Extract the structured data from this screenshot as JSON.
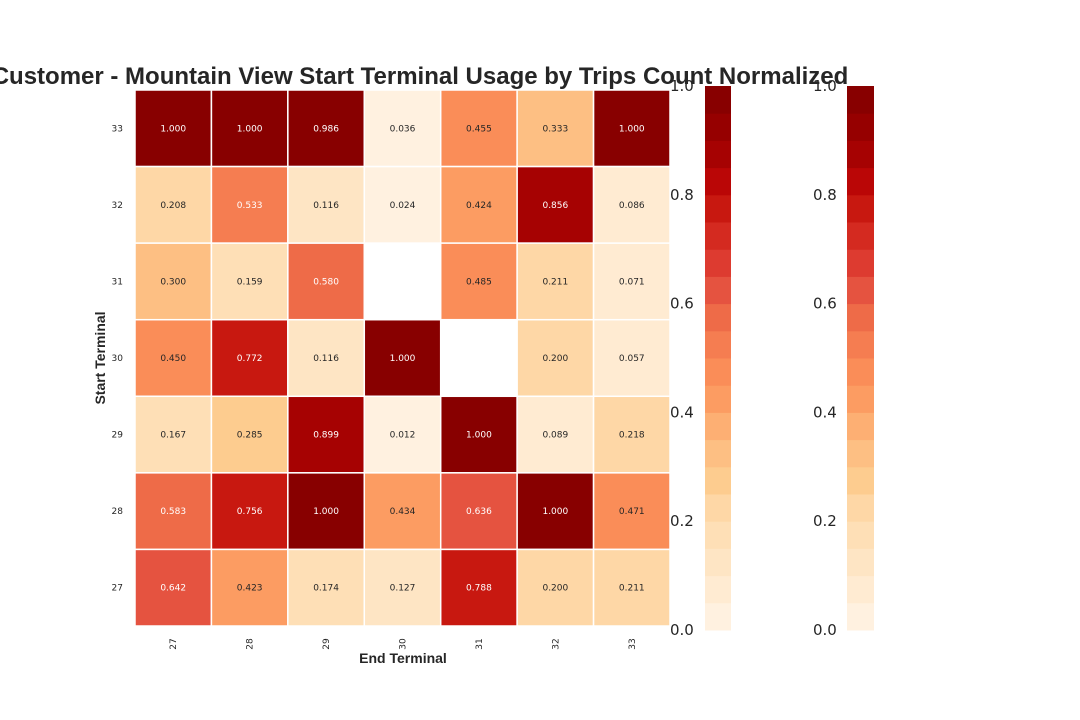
{
  "chart_data": {
    "type": "heatmap",
    "title": "Customer - Mountain View Start Terminal Usage by Trips Count Normalized",
    "xlabel": "End Terminal",
    "ylabel": "Start Terminal",
    "x_categories": [
      "27",
      "28",
      "29",
      "30",
      "31",
      "32",
      "33"
    ],
    "y_categories": [
      "33",
      "32",
      "31",
      "30",
      "29",
      "28",
      "27"
    ],
    "values": [
      [
        1.0,
        1.0,
        0.986,
        0.036,
        0.455,
        0.333,
        1.0
      ],
      [
        0.208,
        0.533,
        0.116,
        0.024,
        0.424,
        0.856,
        0.086
      ],
      [
        0.3,
        0.159,
        0.58,
        null,
        0.485,
        0.211,
        0.071
      ],
      [
        0.45,
        0.772,
        0.116,
        1.0,
        null,
        0.2,
        0.057
      ],
      [
        0.167,
        0.285,
        0.899,
        0.012,
        1.0,
        0.089,
        0.218
      ],
      [
        0.583,
        0.756,
        1.0,
        0.434,
        0.636,
        1.0,
        0.471
      ],
      [
        0.642,
        0.423,
        0.174,
        0.127,
        0.788,
        0.2,
        0.211
      ]
    ],
    "colorbars": [
      {
        "ticks": [
          "0.0",
          "0.2",
          "0.4",
          "0.6",
          "0.8",
          "1.0"
        ],
        "range": [
          0,
          1
        ]
      },
      {
        "ticks": [
          "0.0",
          "0.2",
          "0.4",
          "0.6",
          "0.8",
          "1.0"
        ],
        "range": [
          0,
          1
        ]
      }
    ],
    "colormap_steps": [
      "#fff1e0",
      "#ffebd2",
      "#fee5c4",
      "#fedfb6",
      "#fed7a6",
      "#fdcc8f",
      "#fdbf83",
      "#fdaf73",
      "#fc9c62",
      "#fa8d58",
      "#f57d51",
      "#ee6b48",
      "#e55340",
      "#dd3b30",
      "#d42a20",
      "#c81810",
      "#ba0606",
      "#a60202",
      "#960000",
      "#880000"
    ],
    "grid": false
  }
}
